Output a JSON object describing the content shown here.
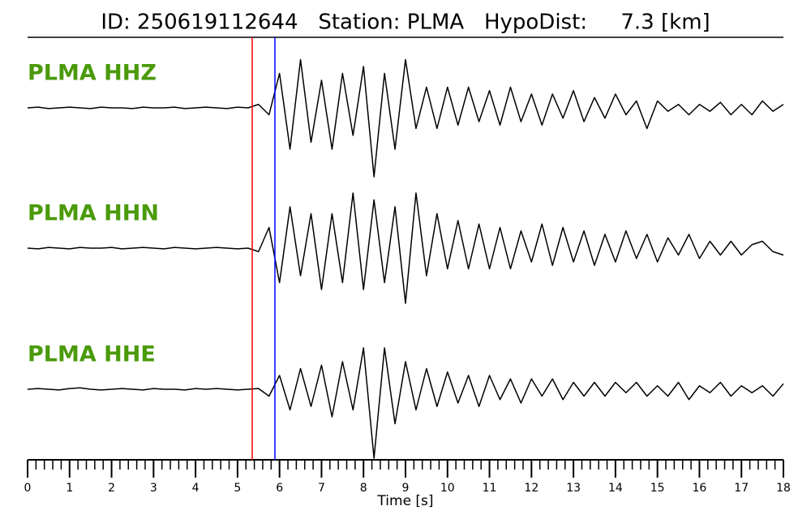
{
  "chart_data": {
    "type": "seismogram",
    "title": "ID: 250619112644   Station: PLMA   HypoDist:     7.3 [km]",
    "xlabel": "Time [s]",
    "xlim": [
      0,
      18
    ],
    "xticks": [
      0,
      1,
      2,
      3,
      4,
      5,
      6,
      7,
      8,
      9,
      10,
      11,
      12,
      13,
      14,
      15,
      16,
      17,
      18
    ],
    "ylim": [
      -1,
      1
    ],
    "label_color": "#4a9a0a",
    "x": [
      0,
      0.25,
      0.5,
      0.75,
      1,
      1.25,
      1.5,
      1.75,
      2,
      2.25,
      2.5,
      2.75,
      3,
      3.25,
      3.5,
      3.75,
      4,
      4.25,
      4.5,
      4.75,
      5,
      5.25,
      5.5,
      5.75,
      6,
      6.25,
      6.5,
      6.75,
      7,
      7.25,
      7.5,
      7.75,
      8,
      8.25,
      8.5,
      8.75,
      9,
      9.25,
      9.5,
      9.75,
      10,
      10.25,
      10.5,
      10.75,
      11,
      11.25,
      11.5,
      11.75,
      12,
      12.25,
      12.5,
      12.75,
      13,
      13.25,
      13.5,
      13.75,
      14,
      14.25,
      14.5,
      14.75,
      15,
      15.25,
      15.5,
      15.75,
      16,
      16.25,
      16.5,
      16.75,
      17,
      17.25,
      17.5,
      17.75,
      18
    ],
    "series": [
      {
        "name": "PLMA HHZ",
        "color": "#000000",
        "values": [
          0,
          0.01,
          -0.01,
          0,
          0.01,
          0,
          -0.01,
          0.01,
          0,
          0,
          -0.01,
          0.01,
          0,
          0,
          0.01,
          -0.01,
          0,
          0.01,
          0,
          -0.01,
          0.01,
          0,
          0.05,
          -0.1,
          0.5,
          -0.6,
          0.7,
          -0.5,
          0.4,
          -0.6,
          0.5,
          -0.4,
          0.6,
          -1.0,
          0.5,
          -0.6,
          0.7,
          -0.3,
          0.3,
          -0.3,
          0.3,
          -0.25,
          0.3,
          -0.2,
          0.25,
          -0.25,
          0.3,
          -0.2,
          0.2,
          -0.25,
          0.2,
          -0.15,
          0.25,
          -0.2,
          0.15,
          -0.15,
          0.2,
          -0.1,
          0.1,
          -0.3,
          0.1,
          -0.05,
          0.05,
          -0.1,
          0.05,
          -0.05,
          0.08,
          -0.1,
          0.05,
          -0.1,
          0.1,
          -0.05,
          0.05
        ]
      },
      {
        "name": "PLMA HHN",
        "color": "#000000",
        "values": [
          0,
          -0.01,
          0.01,
          0,
          -0.01,
          0.01,
          0,
          0,
          0.01,
          -0.01,
          0,
          0.01,
          0,
          -0.01,
          0.01,
          0,
          -0.01,
          0,
          0.01,
          0,
          -0.01,
          0,
          -0.05,
          0.3,
          -0.5,
          0.6,
          -0.4,
          0.5,
          -0.6,
          0.5,
          -0.5,
          0.8,
          -0.6,
          0.7,
          -0.5,
          0.6,
          -0.8,
          0.8,
          -0.4,
          0.5,
          -0.3,
          0.4,
          -0.3,
          0.35,
          -0.3,
          0.3,
          -0.3,
          0.25,
          -0.2,
          0.35,
          -0.25,
          0.3,
          -0.2,
          0.25,
          -0.25,
          0.2,
          -0.2,
          0.25,
          -0.15,
          0.2,
          -0.2,
          0.15,
          -0.1,
          0.2,
          -0.15,
          0.1,
          -0.1,
          0.1,
          -0.1,
          0.05,
          0.1,
          -0.05,
          -0.1
        ]
      },
      {
        "name": "PLMA HHE",
        "color": "#000000",
        "values": [
          0,
          0.01,
          0,
          -0.01,
          0.01,
          0.02,
          0,
          -0.01,
          0,
          0.01,
          0,
          -0.01,
          0.01,
          0,
          0,
          -0.01,
          0.01,
          0,
          0.01,
          0,
          -0.01,
          0,
          0.01,
          -0.1,
          0.2,
          -0.3,
          0.3,
          -0.25,
          0.35,
          -0.4,
          0.4,
          -0.3,
          0.6,
          -1.0,
          0.6,
          -0.5,
          0.4,
          -0.3,
          0.3,
          -0.25,
          0.25,
          -0.2,
          0.2,
          -0.25,
          0.2,
          -0.15,
          0.15,
          -0.2,
          0.15,
          -0.1,
          0.15,
          -0.15,
          0.1,
          -0.1,
          0.1,
          -0.1,
          0.1,
          -0.05,
          0.1,
          -0.1,
          0.05,
          -0.1,
          0.1,
          -0.15,
          0.05,
          -0.05,
          0.1,
          -0.1,
          0.05,
          -0.05,
          0.05,
          -0.1,
          0.08
        ]
      }
    ],
    "picks": [
      {
        "color": "#ff0000",
        "x": 5.35
      },
      {
        "color": "#0000ff",
        "x": 5.89
      }
    ]
  }
}
